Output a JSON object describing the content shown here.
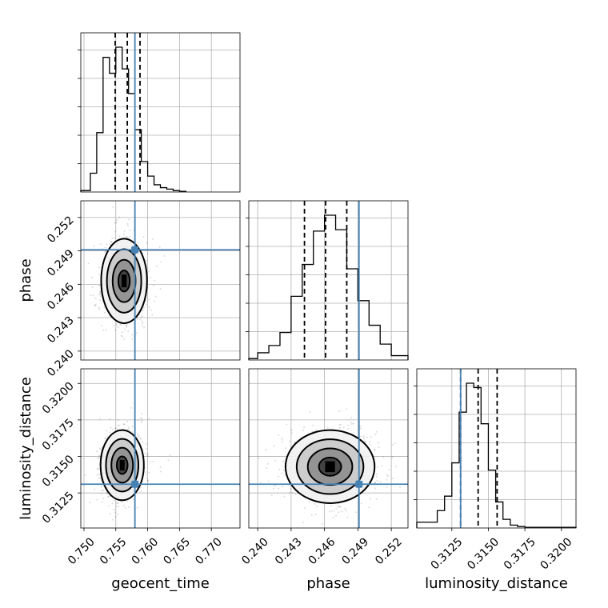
{
  "chart_data": {
    "type": "corner",
    "parameters": [
      {
        "name": "geocent_time",
        "label": "geocent_time",
        "range": [
          0.7495,
          0.7745
        ],
        "ticks": [
          "0.750",
          "0.755",
          "0.760",
          "0.765",
          "0.770"
        ],
        "truth": 0.758,
        "quantiles": [
          0.7549,
          0.7568,
          0.7588
        ],
        "hist_edges": [
          0.7495,
          0.751,
          0.752,
          0.753,
          0.754,
          0.755,
          0.756,
          0.757,
          0.758,
          0.759,
          0.76,
          0.761,
          0.762,
          0.763,
          0.764,
          0.765,
          0.766,
          0.7745
        ],
        "hist_counts": [
          0.01,
          0.13,
          0.41,
          0.93,
          0.82,
          1.0,
          0.85,
          0.68,
          0.43,
          0.21,
          0.11,
          0.05,
          0.03,
          0.02,
          0.01,
          0.005
        ]
      },
      {
        "name": "phase",
        "label": "phase",
        "range": [
          0.2392,
          0.2535
        ],
        "ticks": [
          "0.240",
          "0.243",
          "0.246",
          "0.249",
          "0.252"
        ],
        "truth": 0.2491,
        "quantiles": [
          0.2442,
          0.2461,
          0.248
        ],
        "hist_edges": [
          0.2392,
          0.24,
          0.241,
          0.242,
          0.243,
          0.244,
          0.245,
          0.246,
          0.247,
          0.248,
          0.249,
          0.25,
          0.251,
          0.252,
          0.2535
        ],
        "hist_counts": [
          0.01,
          0.05,
          0.1,
          0.19,
          0.44,
          0.66,
          0.89,
          1.0,
          0.9,
          0.63,
          0.41,
          0.24,
          0.11,
          0.03
        ]
      },
      {
        "name": "luminosity_distance",
        "label": "luminosity_distance",
        "range": [
          0.3101,
          0.321
        ],
        "ticks": [
          "0.3125",
          "0.3150",
          "0.3175",
          "0.3200"
        ],
        "truth": 0.3131,
        "quantiles": [
          0.3131,
          0.3143,
          0.3156
        ],
        "hist_edges": [
          0.3101,
          0.3115,
          0.312,
          0.3125,
          0.313,
          0.3135,
          0.314,
          0.3145,
          0.315,
          0.3155,
          0.316,
          0.3165,
          0.317,
          0.3175,
          0.321
        ],
        "hist_counts": [
          0.04,
          0.12,
          0.22,
          0.45,
          0.8,
          1.0,
          0.97,
          0.72,
          0.4,
          0.18,
          0.06,
          0.02,
          0.01,
          0.005
        ]
      }
    ],
    "pairs": [
      {
        "x": "geocent_time",
        "y": "phase",
        "center": [
          0.7563,
          0.2463
        ],
        "sigma": [
          0.0018,
          0.0019
        ],
        "rho": 0.0
      },
      {
        "x": "geocent_time",
        "y": "luminosity_distance",
        "center": [
          0.756,
          0.3144
        ],
        "sigma": [
          0.0017,
          0.0012
        ],
        "rho": 0.1
      },
      {
        "x": "phase",
        "y": "luminosity_distance",
        "center": [
          0.2465,
          0.3143
        ],
        "sigma": [
          0.002,
          0.00125
        ],
        "rho": 0.0
      }
    ],
    "grid": true
  }
}
